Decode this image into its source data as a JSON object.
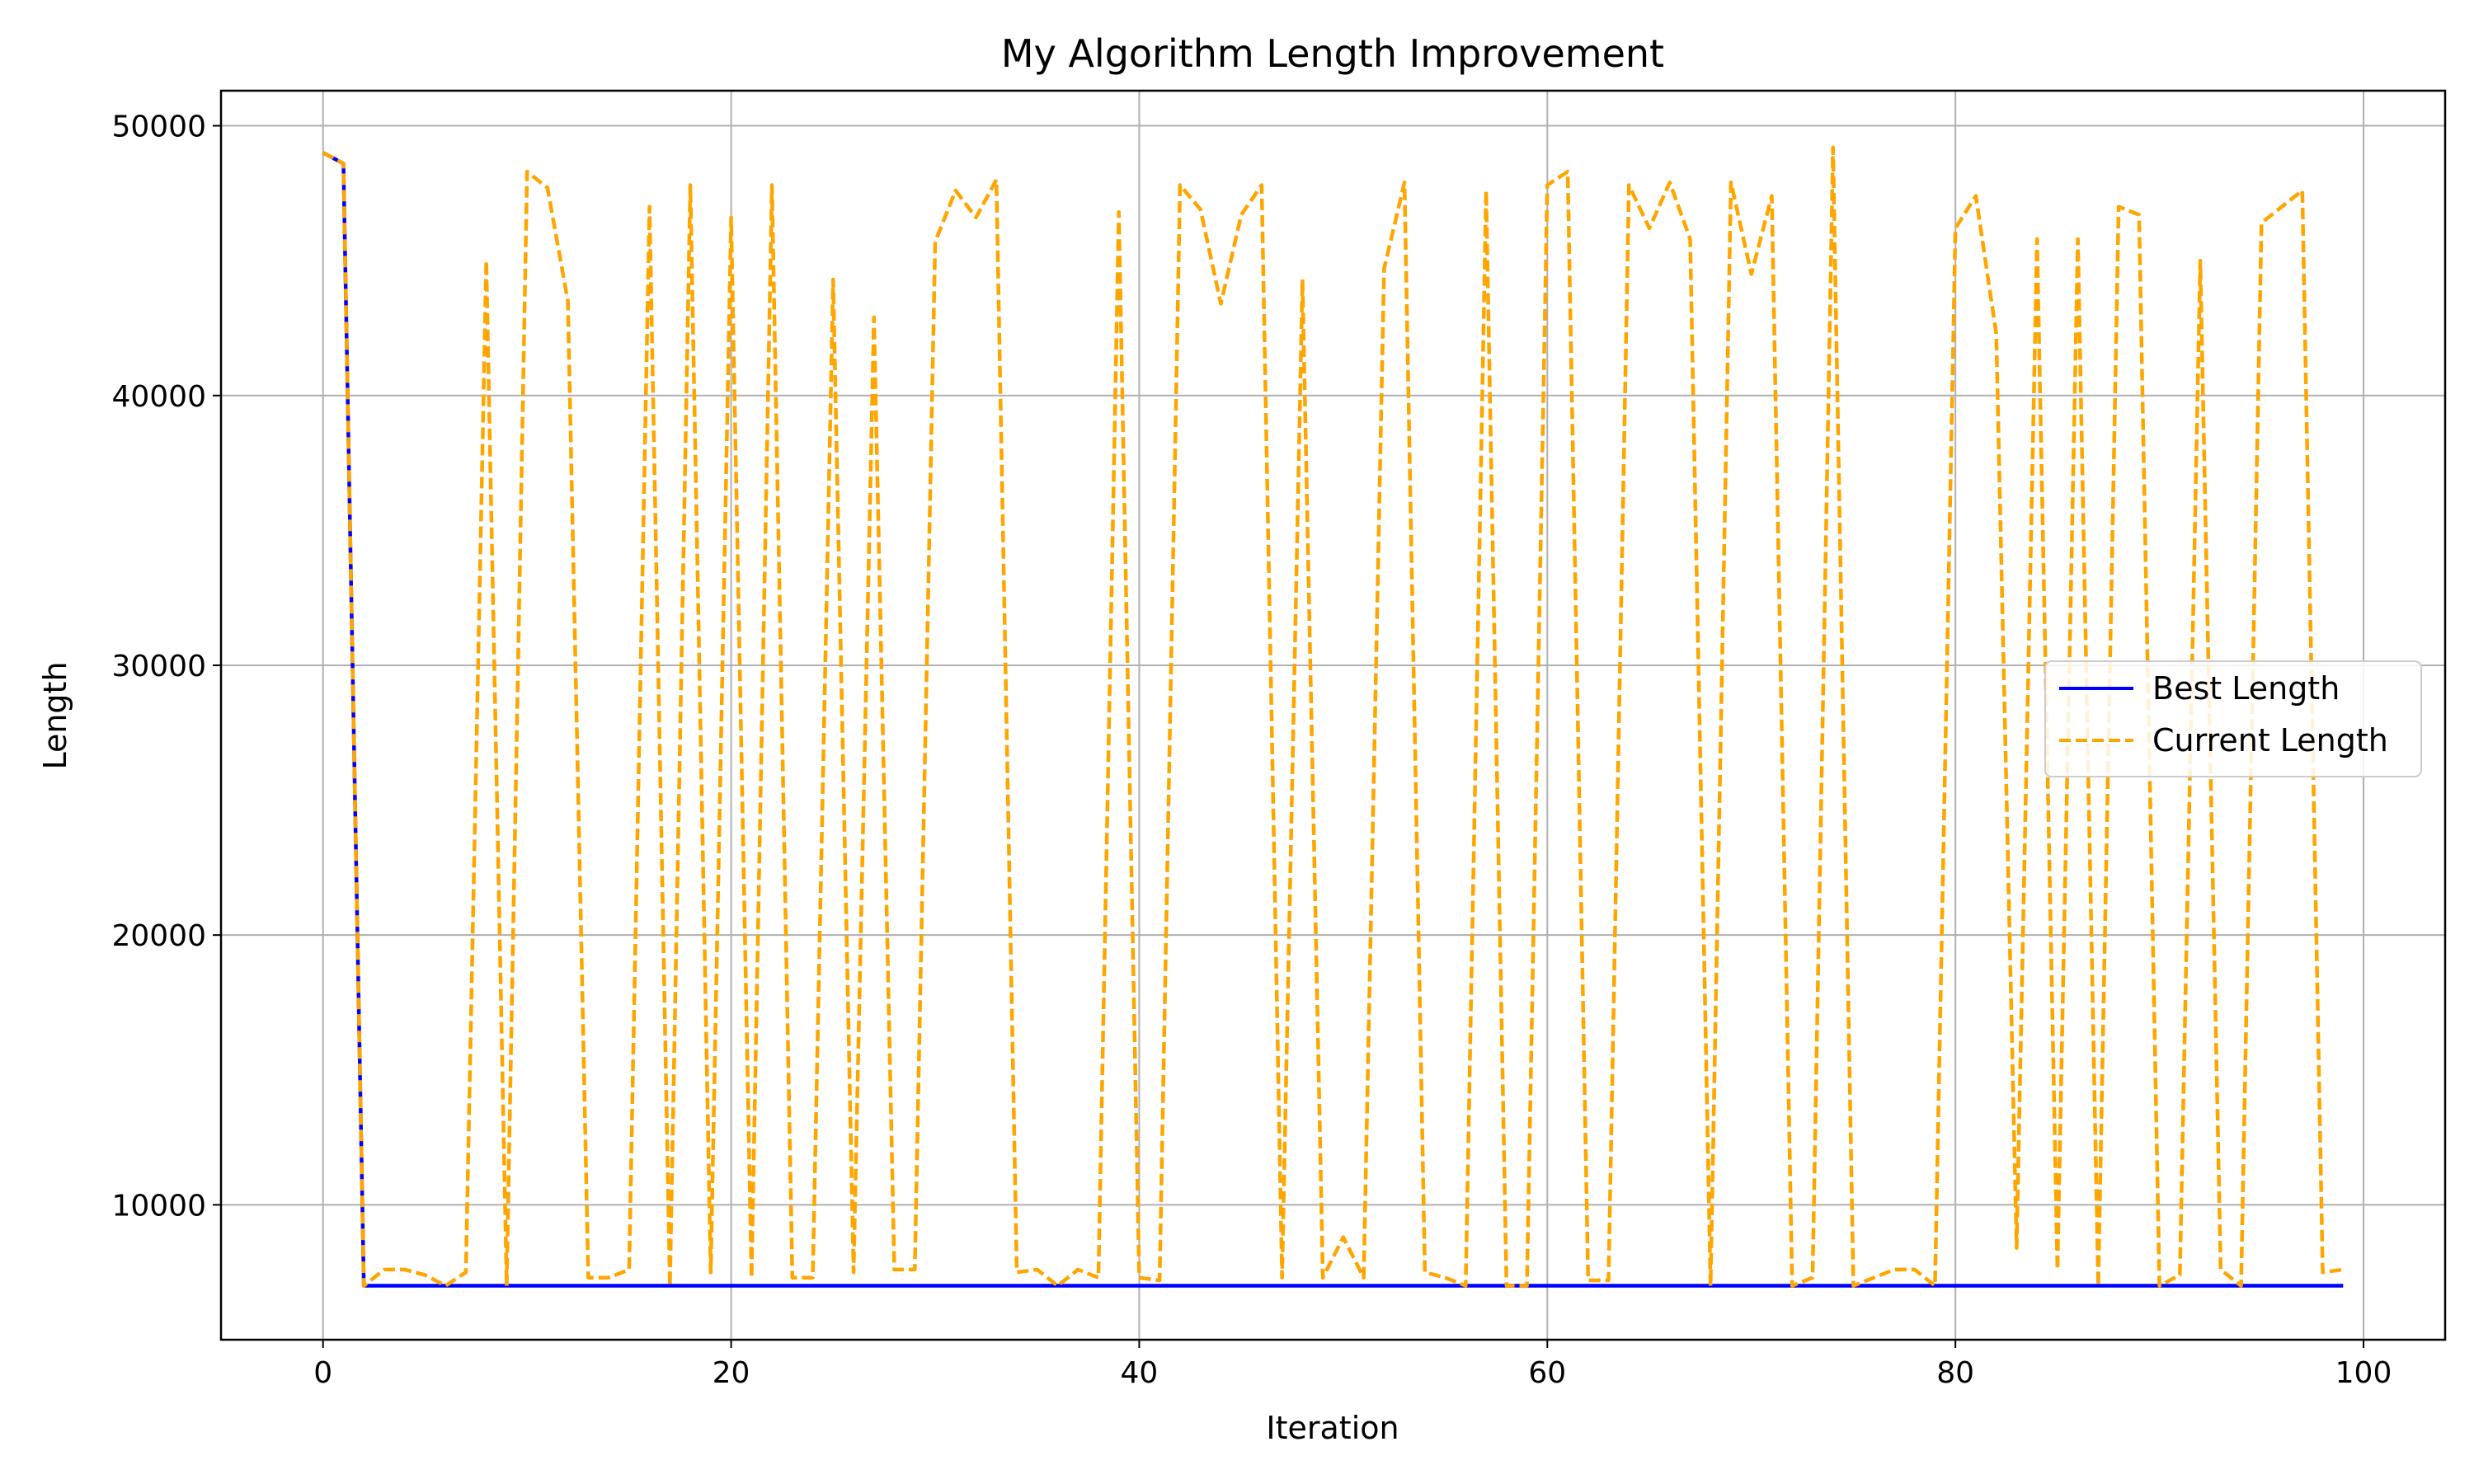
{
  "chart_data": {
    "type": "line",
    "title": "My Algorithm Length Improvement",
    "xlabel": "Iteration",
    "ylabel": "Length",
    "xlim": [
      -5,
      104
    ],
    "ylim": [
      5000,
      51300
    ],
    "xticks": [
      0,
      20,
      40,
      60,
      80,
      100
    ],
    "yticks": [
      10000,
      20000,
      30000,
      40000,
      50000
    ],
    "grid": true,
    "legend_position": "center-right",
    "colors": {
      "best": "#0000ff",
      "current": "#ffa500"
    },
    "series": [
      {
        "name": "Best Length",
        "style": "solid",
        "x_start": 0,
        "values": [
          49000,
          48600,
          7000,
          7000,
          7000,
          7000,
          7000,
          7000,
          7000,
          7000,
          7000,
          7000,
          7000,
          7000,
          7000,
          7000,
          7000,
          7000,
          7000,
          7000,
          7000,
          7000,
          7000,
          7000,
          7000,
          7000,
          7000,
          7000,
          7000,
          7000,
          7000,
          7000,
          7000,
          7000,
          7000,
          7000,
          7000,
          7000,
          7000,
          7000,
          7000,
          7000,
          7000,
          7000,
          7000,
          7000,
          7000,
          7000,
          7000,
          7000,
          7000,
          7000,
          7000,
          7000,
          7000,
          7000,
          7000,
          7000,
          7000,
          7000,
          7000,
          7000,
          7000,
          7000,
          7000,
          7000,
          7000,
          7000,
          7000,
          7000,
          7000,
          7000,
          7000,
          7000,
          7000,
          7000,
          7000,
          7000,
          7000,
          7000,
          7000,
          7000,
          7000,
          7000,
          7000,
          7000,
          7000,
          7000,
          7000,
          7000,
          7000,
          7000,
          7000,
          7000,
          7000,
          7000,
          7000,
          7000,
          7000,
          7000
        ]
      },
      {
        "name": "Current Length",
        "style": "dashed",
        "x_start": 0,
        "values": [
          49000,
          48600,
          7000,
          7600,
          7600,
          7400,
          7000,
          7500,
          45000,
          7000,
          48300,
          47700,
          43500,
          7300,
          7300,
          7600,
          47000,
          7000,
          47800,
          7500,
          46600,
          7300,
          47800,
          7300,
          7300,
          44300,
          7500,
          42900,
          7600,
          7600,
          45700,
          47600,
          46600,
          48000,
          7500,
          7600,
          7000,
          7600,
          7300,
          46800,
          7300,
          7200,
          47800,
          46900,
          43400,
          46700,
          47800,
          7300,
          44300,
          7300,
          8800,
          7300,
          44700,
          47900,
          7500,
          7300,
          7000,
          47600,
          7000,
          7000,
          47800,
          48300,
          7200,
          7200,
          47800,
          46200,
          47900,
          45800,
          7000,
          47900,
          44500,
          47400,
          7000,
          7300,
          49200,
          7000,
          7300,
          7600,
          7600,
          7000,
          46200,
          47400,
          42300,
          8400,
          45800,
          7600,
          45800,
          7000,
          47000,
          46700,
          7000,
          7400,
          45000,
          7600,
          7000,
          46400,
          47000,
          47600,
          7500,
          7600
        ]
      }
    ]
  }
}
